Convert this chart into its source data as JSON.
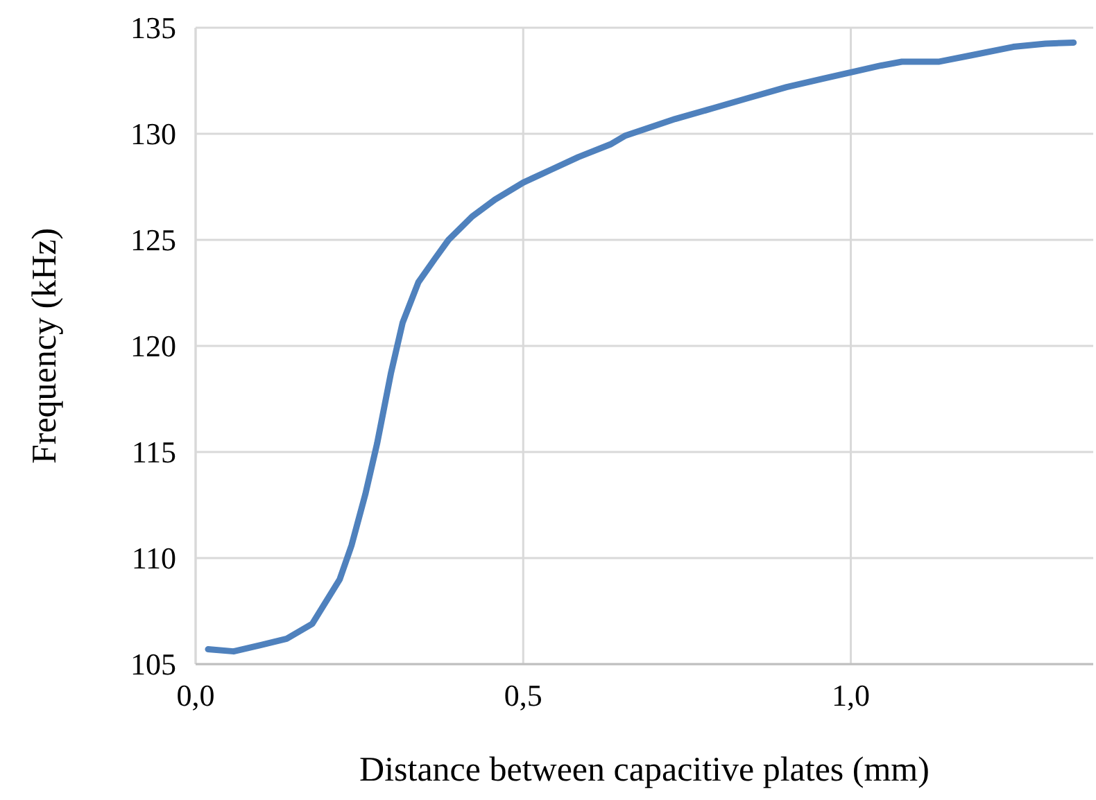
{
  "chart_data": {
    "type": "line",
    "xlabel": "Distance between capacitive plates (mm)",
    "ylabel": "Frequency (kHz)",
    "xlim": [
      0,
      1.37
    ],
    "xticks": [
      {
        "value": 0,
        "label": "0,0"
      },
      {
        "value": 0.5,
        "label": "0,5"
      },
      {
        "value": 1,
        "label": "1,0"
      }
    ],
    "ylim": [
      105,
      135
    ],
    "yticks": [
      105,
      110,
      115,
      120,
      125,
      130,
      135
    ],
    "grid": true,
    "marker": "none",
    "line_style": "solid",
    "series": [
      {
        "color": "#4f81bd",
        "x": [
          0.019,
          0.058,
          0.1,
          0.139,
          0.178,
          0.22,
          0.238,
          0.259,
          0.277,
          0.298,
          0.316,
          0.34,
          0.365,
          0.386,
          0.422,
          0.457,
          0.5,
          0.542,
          0.584,
          0.633,
          0.655,
          0.732,
          0.789,
          0.845,
          0.902,
          0.958,
          1.0,
          1.043,
          1.078,
          1.135,
          1.184,
          1.248,
          1.297,
          1.34
        ],
        "values": [
          105.7,
          105.6,
          105.9,
          106.2,
          106.9,
          109.0,
          110.6,
          113.0,
          115.4,
          118.7,
          121.1,
          123.0,
          124.1,
          125.0,
          126.1,
          126.9,
          127.7,
          128.3,
          128.9,
          129.5,
          129.9,
          130.7,
          131.2,
          131.7,
          132.2,
          132.6,
          132.9,
          133.2,
          133.4,
          133.4,
          133.7,
          134.1,
          134.25,
          134.3
        ]
      }
    ]
  }
}
